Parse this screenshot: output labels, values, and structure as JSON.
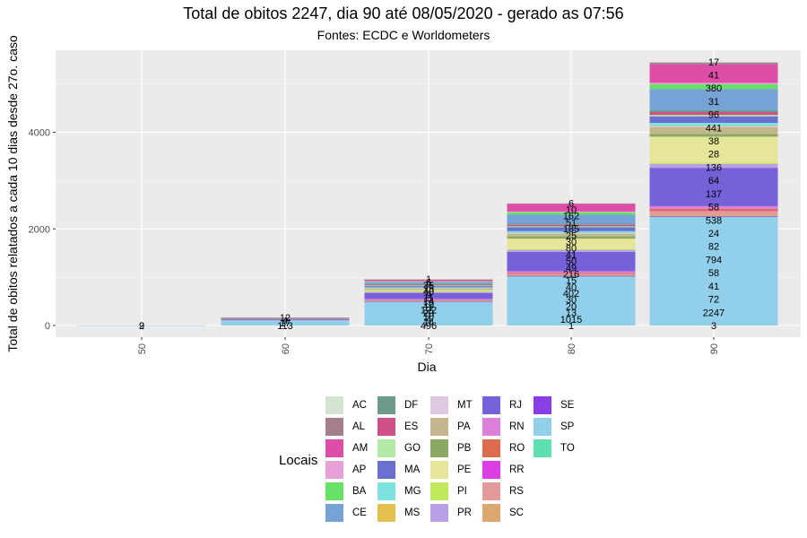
{
  "title": "Total de obitos 2247, dia 90 até 08/05/2020 - gerado as 07:56",
  "subtitle": "Fontes: ECDC e Worldometers",
  "chart_data": {
    "type": "bar",
    "stacked": true,
    "xlabel": "Dia",
    "ylabel": "Total de obitos relatados a cada 10 dias desde 27o. caso",
    "categories": [
      "50",
      "60",
      "70",
      "80",
      "90"
    ],
    "ylim": [
      0,
      5700
    ],
    "yticks": [
      0,
      2000,
      4000
    ],
    "grid": true,
    "legend_title": "Locais",
    "legend_position": "bottom",
    "legend": [
      "AC",
      "AL",
      "AM",
      "AP",
      "BA",
      "CE",
      "DF",
      "ES",
      "GO",
      "MA",
      "MG",
      "MS",
      "MT",
      "PA",
      "PB",
      "PE",
      "PI",
      "PR",
      "RJ",
      "RN",
      "RO",
      "RR",
      "RS",
      "SC",
      "SE",
      "SP",
      "TO"
    ],
    "colors": {
      "AC": "#d4e6d1",
      "AL": "#a57f8d",
      "AM": "#de4ea8",
      "AP": "#e8a0d8",
      "BA": "#66e367",
      "CE": "#76a2d6",
      "DF": "#6e9a8a",
      "ES": "#cf4f87",
      "GO": "#b2e9a7",
      "MA": "#6a70cf",
      "MG": "#7ee3e0",
      "MS": "#e4c04e",
      "MT": "#dfc8e0",
      "PA": "#c6b690",
      "PB": "#8aa965",
      "PE": "#e5e69a",
      "PI": "#c2e95e",
      "PR": "#b9a0e6",
      "RJ": "#7661d8",
      "RN": "#de7fdb",
      "RO": "#dd6b4d",
      "RR": "#dc3fe3",
      "RS": "#e59a9a",
      "SC": "#dca772",
      "SE": "#8a3ee6",
      "SP": "#92cfea",
      "TO": "#5fe0b0"
    },
    "series": [
      {
        "name": "SP",
        "values": [
          2,
          113,
          496,
          1015,
          2247
        ]
      },
      {
        "name": "TO",
        "values": [
          0,
          0,
          0,
          1,
          3
        ]
      },
      {
        "name": "SE",
        "values": [
          0,
          0,
          4,
          13,
          14
        ]
      },
      {
        "name": "SC",
        "values": [
          0,
          2,
          10,
          20,
          28
        ]
      },
      {
        "name": "RS",
        "values": [
          0,
          2,
          20,
          30,
          72
        ]
      },
      {
        "name": "RR",
        "values": [
          0,
          0,
          1,
          3,
          8
        ]
      },
      {
        "name": "RO",
        "values": [
          0,
          0,
          4,
          12,
          41
        ]
      },
      {
        "name": "RN",
        "values": [
          0,
          1,
          16,
          30,
          58
        ]
      },
      {
        "name": "RJ",
        "values": [
          0,
          18,
          122,
          402,
          794
        ]
      },
      {
        "name": "PR",
        "values": [
          0,
          3,
          24,
          40,
          82
        ]
      },
      {
        "name": "PI",
        "values": [
          0,
          0,
          8,
          15,
          24
        ]
      },
      {
        "name": "PE",
        "values": [
          0,
          4,
          30,
          216,
          538
        ]
      },
      {
        "name": "PB",
        "values": [
          0,
          1,
          10,
          49,
          58
        ]
      },
      {
        "name": "PA",
        "values": [
          0,
          0,
          20,
          50,
          137
        ]
      },
      {
        "name": "MT",
        "values": [
          0,
          0,
          3,
          8,
          17
        ]
      },
      {
        "name": "MS",
        "values": [
          0,
          0,
          3,
          8,
          10
        ]
      },
      {
        "name": "MG",
        "values": [
          0,
          1,
          20,
          41,
          64
        ]
      },
      {
        "name": "MA",
        "values": [
          0,
          1,
          25,
          80,
          136
        ]
      },
      {
        "name": "GO",
        "values": [
          0,
          2,
          15,
          20,
          28
        ]
      },
      {
        "name": "ES",
        "values": [
          0,
          1,
          14,
          30,
          60
        ]
      },
      {
        "name": "DF",
        "values": [
          0,
          2,
          11,
          25,
          38
        ]
      },
      {
        "name": "CE",
        "values": [
          0,
          4,
          40,
          185,
          441
        ]
      },
      {
        "name": "BA",
        "values": [
          0,
          2,
          15,
          51,
          96
        ]
      },
      {
        "name": "AP",
        "values": [
          0,
          0,
          6,
          15,
          31
        ]
      },
      {
        "name": "AM",
        "values": [
          0,
          8,
          35,
          162,
          380
        ]
      },
      {
        "name": "AL",
        "values": [
          0,
          0,
          6,
          10,
          41
        ]
      },
      {
        "name": "AC",
        "values": [
          0,
          0,
          3,
          6,
          17
        ]
      }
    ],
    "labels": [
      [
        "2",
        "9"
      ],
      [
        "113",
        "17",
        "4",
        "12"
      ],
      [
        "496",
        "14",
        "4",
        "10",
        "20",
        "122",
        "11",
        "10",
        "14",
        "11",
        "9",
        "40",
        "15",
        "35",
        "6",
        "1"
      ],
      [
        "1",
        "1015",
        "13",
        "20",
        "30",
        "402",
        "40",
        "15",
        "216",
        "49",
        "50",
        "41",
        "80",
        "30",
        "25",
        "185",
        "51",
        "162",
        "10",
        "6"
      ],
      [
        "3",
        "2247",
        "72",
        "41",
        "58",
        "794",
        "82",
        "24",
        "538",
        "58",
        "137",
        "64",
        "136",
        "28",
        "38",
        "441",
        "96",
        "31",
        "380",
        "41",
        "17"
      ]
    ]
  }
}
